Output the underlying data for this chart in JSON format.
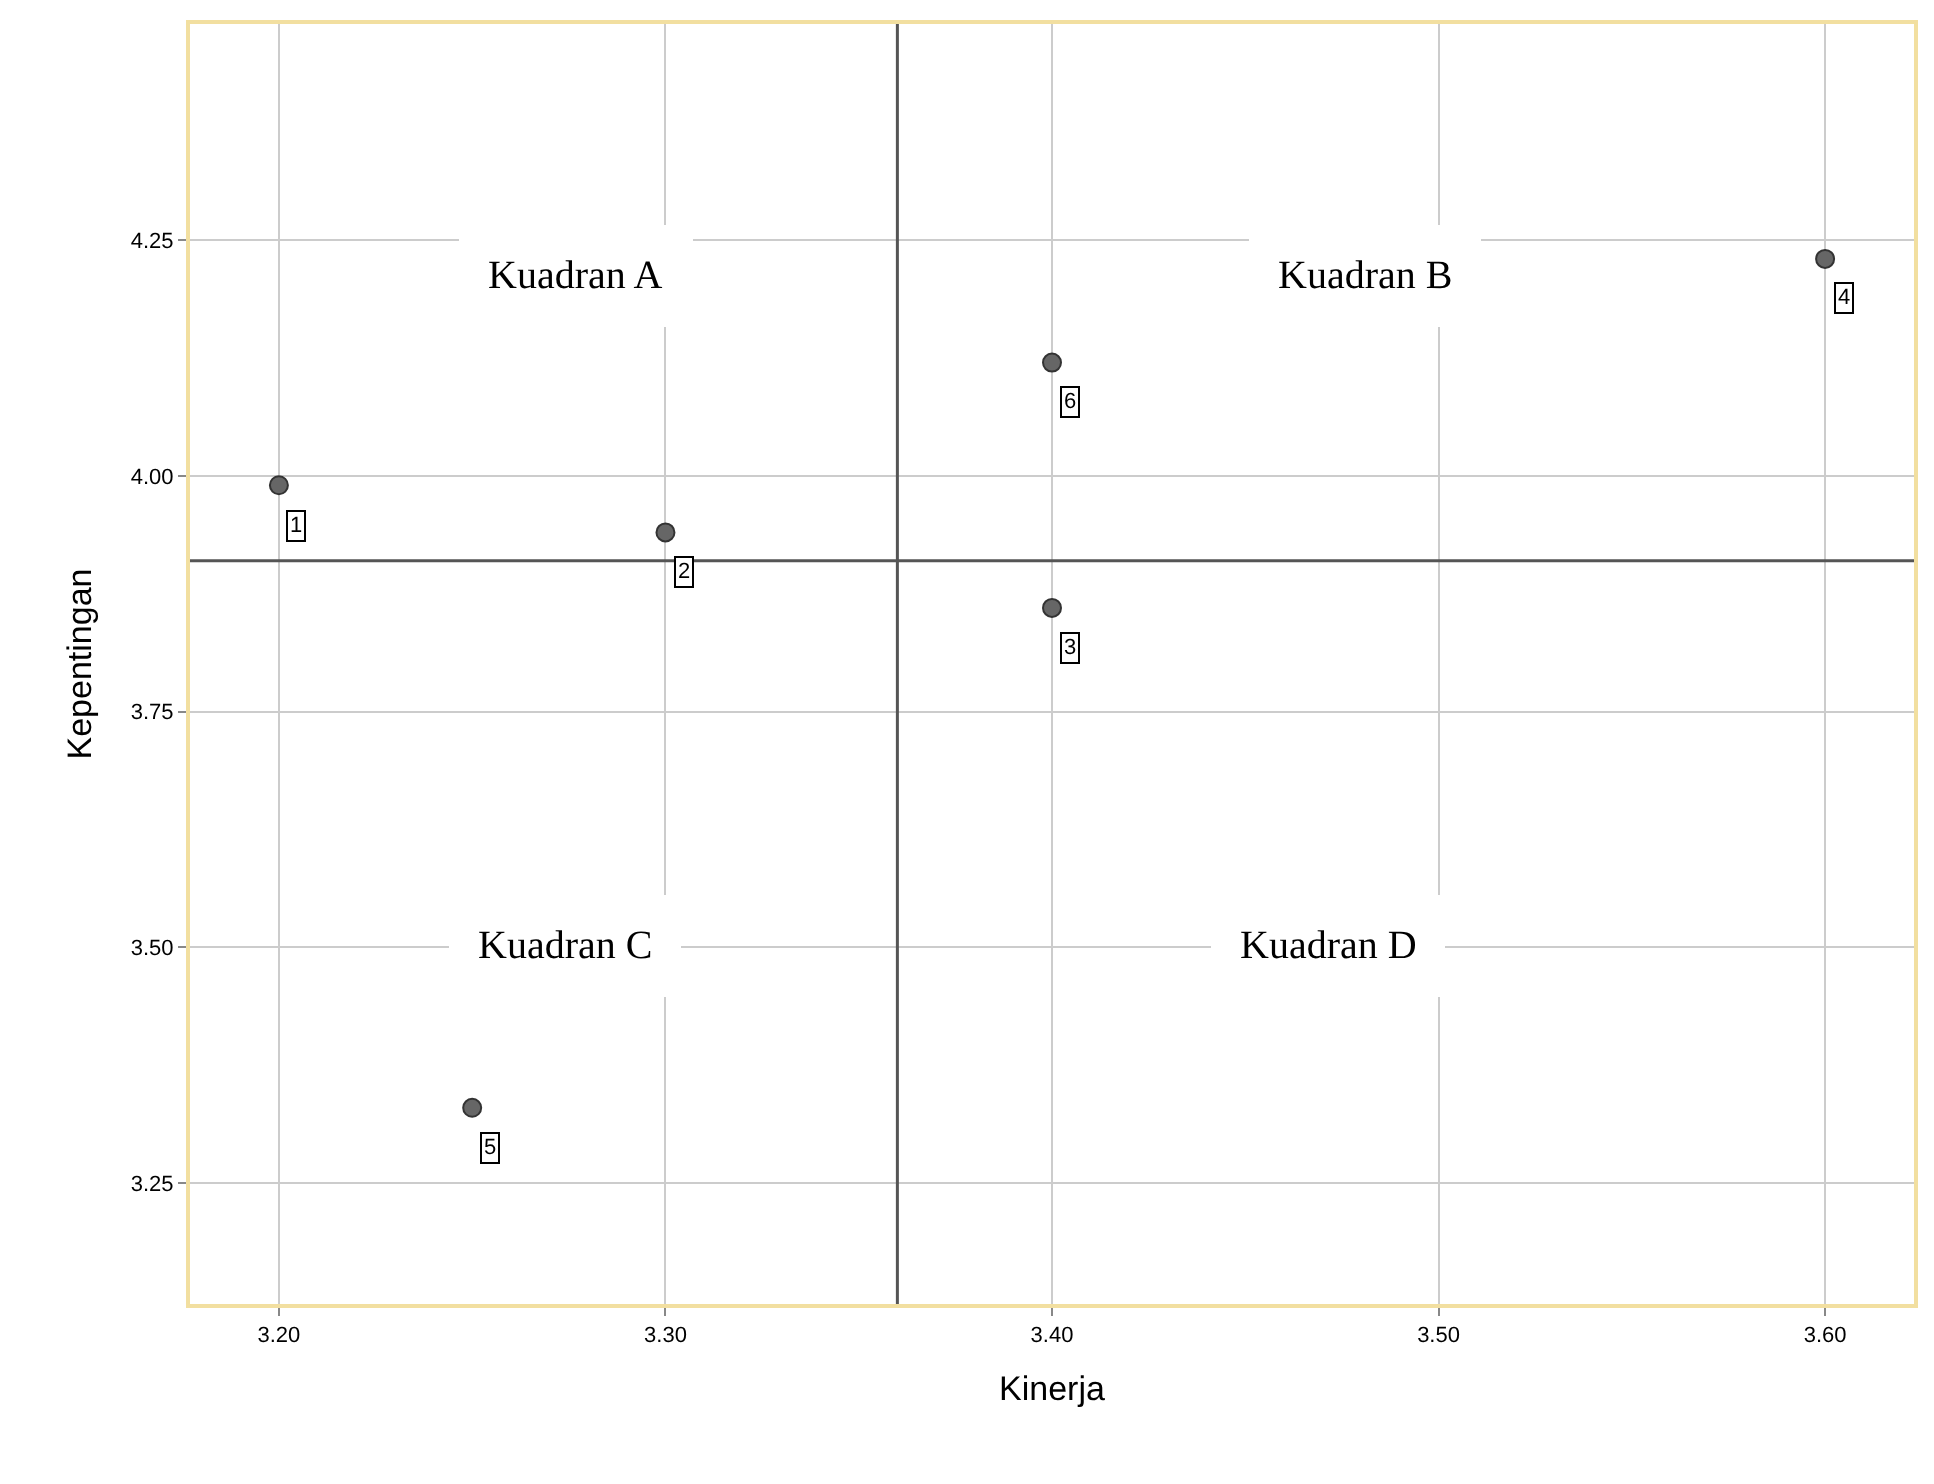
{
  "chart_data": {
    "type": "scatter",
    "xlabel": "Kinerja",
    "ylabel": "Kepentingan",
    "x": [
      3.2,
      3.3,
      3.4,
      3.6,
      3.25,
      3.4
    ],
    "series": [
      {
        "color": "#666666",
        "values": [
          3.99,
          3.94,
          3.86,
          4.23,
          3.33,
          4.12
        ]
      }
    ],
    "xlim": [
      3.177,
      3.623
    ],
    "xticks": [
      {
        "value": 3.2,
        "label": "3.20"
      },
      {
        "value": 3.3,
        "label": "3.30"
      },
      {
        "value": 3.4,
        "label": "3.40"
      },
      {
        "value": 3.5,
        "label": "3.50"
      },
      {
        "value": 3.6,
        "label": "3.60"
      }
    ],
    "ylim": [
      3.122,
      4.479
    ],
    "yticks": [
      {
        "value": 3.25,
        "label": "3.25"
      },
      {
        "value": 3.5,
        "label": "3.50"
      },
      {
        "value": 3.75,
        "label": "3.75"
      },
      {
        "value": 4.0,
        "label": "4.00"
      },
      {
        "value": 4.25,
        "label": "4.25"
      }
    ],
    "ref_lines": [
      {
        "axis": "x",
        "value": 3.36,
        "color": "#555555"
      },
      {
        "axis": "y",
        "value": 3.91,
        "color": "#555555"
      }
    ],
    "annotations": [
      {
        "text": "1",
        "x": 3.2,
        "y": 3.99
      },
      {
        "text": "2",
        "x": 3.3,
        "y": 3.94
      },
      {
        "text": "3",
        "x": 3.4,
        "y": 3.86
      },
      {
        "text": "4",
        "x": 3.6,
        "y": 4.23
      },
      {
        "text": "5",
        "x": 3.25,
        "y": 3.33
      },
      {
        "text": "6",
        "x": 3.4,
        "y": 4.12
      },
      "Kuadran A",
      "Kuadran B",
      "Kuadran C",
      "Kuadran D"
    ],
    "grid": true,
    "marker": "circle"
  }
}
